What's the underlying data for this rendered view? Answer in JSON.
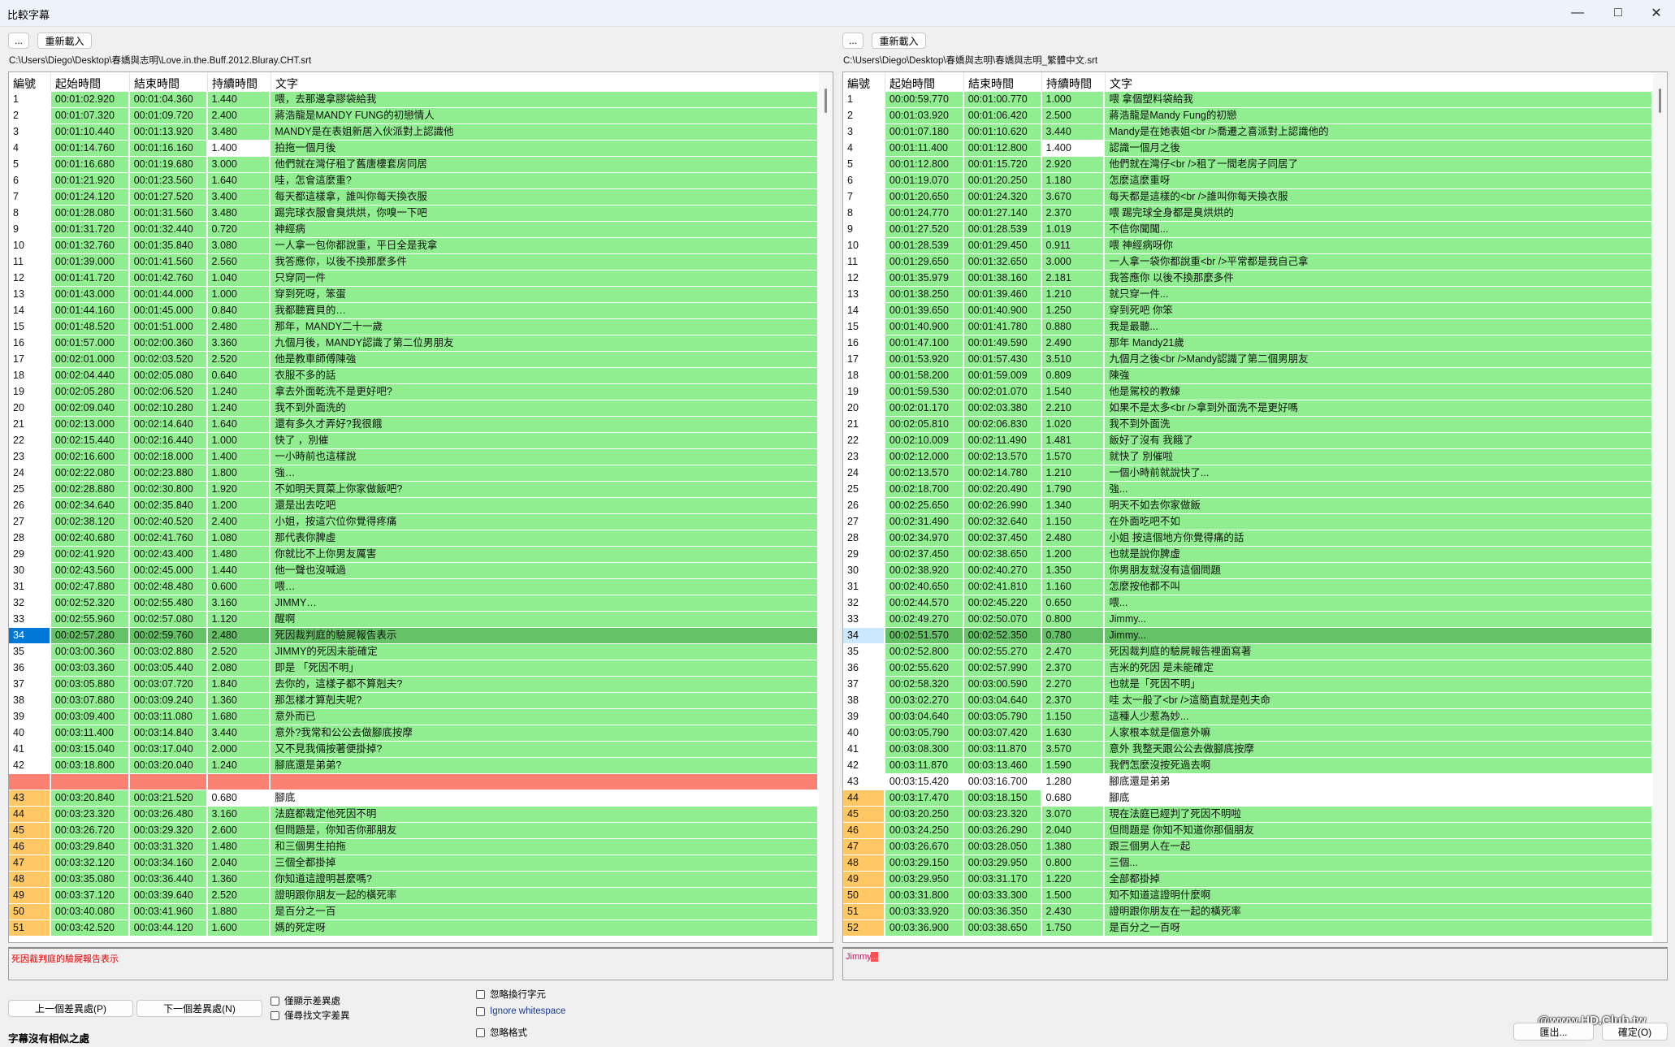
{
  "window": {
    "title": "比較字幕",
    "minimize_icon": "minimize-icon",
    "maximize_icon": "maximize-icon",
    "close_icon": "close-icon"
  },
  "columns": [
    "編號",
    "起始時間",
    "結束時間",
    "持續時間",
    "文字"
  ],
  "colors": {
    "match": "#90ee90",
    "changed": "#ffffff",
    "shifted": "#ffc864",
    "missing": "#fa8072",
    "selected": "#66c266",
    "selected_num": "#0078d7"
  },
  "left": {
    "browse_label": "...",
    "reload_label": "重新載入",
    "path": "C:\\Users\\Diego\\Desktop\\春嬌與志明\\Love.in.the.Buff.2012.Bluray.CHT.srt",
    "diff_text": "死因裁判庭的驗屍報告表示",
    "rows": [
      [
        "1",
        "00:01:02.920",
        "00:01:04.360",
        "1.440",
        "喂，去那邊拿膠袋給我",
        ""
      ],
      [
        "2",
        "00:01:07.320",
        "00:01:09.720",
        "2.400",
        "蔣浩龍是MANDY FUNG的初戀情人",
        ""
      ],
      [
        "3",
        "00:01:10.440",
        "00:01:13.920",
        "3.480",
        "MANDY是在表姐新居入伙派對上認識他",
        ""
      ],
      [
        "4",
        "00:01:14.760",
        "00:01:16.160",
        "1.400",
        "拍拖一個月後",
        "dur"
      ],
      [
        "5",
        "00:01:16.680",
        "00:01:19.680",
        "3.000",
        "他們就在灣仔租了舊唐樓套房同居",
        ""
      ],
      [
        "6",
        "00:01:21.920",
        "00:01:23.560",
        "1.640",
        "哇，怎會這麼重?",
        ""
      ],
      [
        "7",
        "00:01:24.120",
        "00:01:27.520",
        "3.400",
        "每天都這樣拿，誰叫你每天換衣服",
        ""
      ],
      [
        "8",
        "00:01:28.080",
        "00:01:31.560",
        "3.480",
        "踢完球衣服會臭烘烘，你嗅一下吧",
        ""
      ],
      [
        "9",
        "00:01:31.720",
        "00:01:32.440",
        "0.720",
        "神經病",
        ""
      ],
      [
        "10",
        "00:01:32.760",
        "00:01:35.840",
        "3.080",
        "一人拿一包你都說重，平日全是我拿",
        ""
      ],
      [
        "11",
        "00:01:39.000",
        "00:01:41.560",
        "2.560",
        "我答應你，以後不換那麼多件",
        ""
      ],
      [
        "12",
        "00:01:41.720",
        "00:01:42.760",
        "1.040",
        "只穿同一件",
        ""
      ],
      [
        "13",
        "00:01:43.000",
        "00:01:44.000",
        "1.000",
        "穿到死呀，笨蛋",
        ""
      ],
      [
        "14",
        "00:01:44.160",
        "00:01:45.000",
        "0.840",
        "我都聽寶貝的…",
        ""
      ],
      [
        "15",
        "00:01:48.520",
        "00:01:51.000",
        "2.480",
        "那年，MANDY二十一歲",
        ""
      ],
      [
        "16",
        "00:01:57.000",
        "00:02:00.360",
        "3.360",
        "九個月後，MANDY認識了第二位男朋友",
        ""
      ],
      [
        "17",
        "00:02:01.000",
        "00:02:03.520",
        "2.520",
        "他是教車師傅陳強",
        ""
      ],
      [
        "18",
        "00:02:04.440",
        "00:02:05.080",
        "0.640",
        "衣服不多的話",
        ""
      ],
      [
        "19",
        "00:02:05.280",
        "00:02:06.520",
        "1.240",
        "拿去外面乾洗不是更好吧?",
        ""
      ],
      [
        "20",
        "00:02:09.040",
        "00:02:10.280",
        "1.240",
        "我不到外面洗的",
        ""
      ],
      [
        "21",
        "00:02:13.000",
        "00:02:14.640",
        "1.640",
        "還有多久才弄好?我很餓",
        ""
      ],
      [
        "22",
        "00:02:15.440",
        "00:02:16.440",
        "1.000",
        "快了 ，別催",
        ""
      ],
      [
        "23",
        "00:02:16.600",
        "00:02:18.000",
        "1.400",
        "一小時前也這樣說",
        ""
      ],
      [
        "24",
        "00:02:22.080",
        "00:02:23.880",
        "1.800",
        "強…",
        ""
      ],
      [
        "25",
        "00:02:28.880",
        "00:02:30.800",
        "1.920",
        "不如明天買菜上你家做飯吧?",
        ""
      ],
      [
        "26",
        "00:02:34.640",
        "00:02:35.840",
        "1.200",
        "還是出去吃吧",
        ""
      ],
      [
        "27",
        "00:02:38.120",
        "00:02:40.520",
        "2.400",
        "小姐，按這穴位你覺得疼痛",
        ""
      ],
      [
        "28",
        "00:02:40.680",
        "00:02:41.760",
        "1.080",
        "那代表你脾虛",
        ""
      ],
      [
        "29",
        "00:02:41.920",
        "00:02:43.400",
        "1.480",
        "你就比不上你男友厲害",
        ""
      ],
      [
        "30",
        "00:02:43.560",
        "00:02:45.000",
        "1.440",
        "他一聲也沒喊過",
        ""
      ],
      [
        "31",
        "00:02:47.880",
        "00:02:48.480",
        "0.600",
        "喂…",
        ""
      ],
      [
        "32",
        "00:02:52.320",
        "00:02:55.480",
        "3.160",
        "JIMMY…",
        ""
      ],
      [
        "33",
        "00:02:55.960",
        "00:02:57.080",
        "1.120",
        "醒啊",
        ""
      ],
      [
        "34",
        "00:02:57.280",
        "00:02:59.760",
        "2.480",
        "死因裁判庭的驗屍報告表示",
        "sel"
      ],
      [
        "35",
        "00:03:00.360",
        "00:03:02.880",
        "2.520",
        "JIMMY的死因未能確定",
        ""
      ],
      [
        "36",
        "00:03:03.360",
        "00:03:05.440",
        "2.080",
        "即是 「死因不明」",
        ""
      ],
      [
        "37",
        "00:03:05.880",
        "00:03:07.720",
        "1.840",
        "去你的，這樣子都不算剋夫?",
        ""
      ],
      [
        "38",
        "00:03:07.880",
        "00:03:09.240",
        "1.360",
        "那怎樣才算剋夫呢?",
        ""
      ],
      [
        "39",
        "00:03:09.400",
        "00:03:11.080",
        "1.680",
        "意外而已",
        ""
      ],
      [
        "40",
        "00:03:11.400",
        "00:03:14.840",
        "3.440",
        "意外?我常和公公去做腳底按摩",
        ""
      ],
      [
        "41",
        "00:03:15.040",
        "00:03:17.040",
        "2.000",
        "又不見我倆按著便掛掉?",
        ""
      ],
      [
        "42",
        "00:03:18.800",
        "00:03:20.040",
        "1.240",
        "腳底還是弟弟?",
        ""
      ],
      [
        "",
        "",
        "",
        "",
        "",
        "gap"
      ],
      [
        "43",
        "00:03:20.840",
        "00:03:21.520",
        "0.680",
        "腳底",
        "shift-dur"
      ],
      [
        "44",
        "00:03:23.320",
        "00:03:26.480",
        "3.160",
        "法庭都裁定他死因不明",
        "shift"
      ],
      [
        "45",
        "00:03:26.720",
        "00:03:29.320",
        "2.600",
        "但問題是，你知否你那朋友",
        "shift"
      ],
      [
        "46",
        "00:03:29.840",
        "00:03:31.320",
        "1.480",
        "和三個男生拍拖",
        "shift"
      ],
      [
        "47",
        "00:03:32.120",
        "00:03:34.160",
        "2.040",
        "三個全都掛掉",
        "shift"
      ],
      [
        "48",
        "00:03:35.080",
        "00:03:36.440",
        "1.360",
        "你知道這證明甚麼嗎?",
        "shift"
      ],
      [
        "49",
        "00:03:37.120",
        "00:03:39.640",
        "2.520",
        "證明跟你朋友一起的橫死率",
        "shift"
      ],
      [
        "50",
        "00:03:40.080",
        "00:03:41.960",
        "1.880",
        "是百分之一百",
        "shift"
      ],
      [
        "51",
        "00:03:42.520",
        "00:03:44.120",
        "1.600",
        "媽的死定呀",
        "shift"
      ]
    ]
  },
  "right": {
    "browse_label": "...",
    "reload_label": "重新載入",
    "path": "C:\\Users\\Diego\\Desktop\\春嬌與志明\\春嬌與志明_繁體中文.srt",
    "diff_text": "Jimmy",
    "diff_text_highlight": "...",
    "rows": [
      [
        "1",
        "00:00:59.770",
        "00:01:00.770",
        "1.000",
        "喂 拿個塑料袋給我",
        ""
      ],
      [
        "2",
        "00:01:03.920",
        "00:01:06.420",
        "2.500",
        "蔣浩龍是Mandy Fung的初戀",
        ""
      ],
      [
        "3",
        "00:01:07.180",
        "00:01:10.620",
        "3.440",
        "Mandy是在她表姐<br />喬遷之喜派對上認識他的",
        ""
      ],
      [
        "4",
        "00:01:11.400",
        "00:01:12.800",
        "1.400",
        "認識一個月之後",
        "dur"
      ],
      [
        "5",
        "00:01:12.800",
        "00:01:15.720",
        "2.920",
        "他們就在灣仔<br />租了一間老房子同居了",
        ""
      ],
      [
        "6",
        "00:01:19.070",
        "00:01:20.250",
        "1.180",
        "怎麼這麼重呀",
        ""
      ],
      [
        "7",
        "00:01:20.650",
        "00:01:24.320",
        "3.670",
        "每天都是這樣的<br />誰叫你每天換衣服",
        ""
      ],
      [
        "8",
        "00:01:24.770",
        "00:01:27.140",
        "2.370",
        "喂 踢完球全身都是臭烘烘的",
        ""
      ],
      [
        "9",
        "00:01:27.520",
        "00:01:28.539",
        "1.019",
        "不信你聞聞...",
        ""
      ],
      [
        "10",
        "00:01:28.539",
        "00:01:29.450",
        "0.911",
        "喂 神經病呀你",
        ""
      ],
      [
        "11",
        "00:01:29.650",
        "00:01:32.650",
        "3.000",
        "一人拿一袋你都說重<br />平常都是我自己拿",
        ""
      ],
      [
        "12",
        "00:01:35.979",
        "00:01:38.160",
        "2.181",
        "我答應你 以後不換那麼多件",
        ""
      ],
      [
        "13",
        "00:01:38.250",
        "00:01:39.460",
        "1.210",
        "就只穿一件...",
        ""
      ],
      [
        "14",
        "00:01:39.650",
        "00:01:40.900",
        "1.250",
        "穿到死吧 你笨",
        ""
      ],
      [
        "15",
        "00:01:40.900",
        "00:01:41.780",
        "0.880",
        "我是最聽...",
        ""
      ],
      [
        "16",
        "00:01:47.100",
        "00:01:49.590",
        "2.490",
        "那年 Mandy21歲",
        ""
      ],
      [
        "17",
        "00:01:53.920",
        "00:01:57.430",
        "3.510",
        "九個月之後<br />Mandy認識了第二個男朋友",
        ""
      ],
      [
        "18",
        "00:01:58.200",
        "00:01:59.009",
        "0.809",
        "陳強",
        ""
      ],
      [
        "19",
        "00:01:59.530",
        "00:02:01.070",
        "1.540",
        "他是駕校的教練",
        ""
      ],
      [
        "20",
        "00:02:01.170",
        "00:02:03.380",
        "2.210",
        "如果不是太多<br />拿到外面洗不是更好嗎",
        ""
      ],
      [
        "21",
        "00:02:05.810",
        "00:02:06.830",
        "1.020",
        "我不到外面洗",
        ""
      ],
      [
        "22",
        "00:02:10.009",
        "00:02:11.490",
        "1.481",
        "飯好了沒有 我餓了",
        ""
      ],
      [
        "23",
        "00:02:12.000",
        "00:02:13.570",
        "1.570",
        "就快了 別催啦",
        ""
      ],
      [
        "24",
        "00:02:13.570",
        "00:02:14.780",
        "1.210",
        "一個小時前就說快了...",
        ""
      ],
      [
        "25",
        "00:02:18.700",
        "00:02:20.490",
        "1.790",
        "強...",
        ""
      ],
      [
        "26",
        "00:02:25.650",
        "00:02:26.990",
        "1.340",
        "明天不如去你家做飯",
        ""
      ],
      [
        "27",
        "00:02:31.490",
        "00:02:32.640",
        "1.150",
        "在外面吃吧不如",
        ""
      ],
      [
        "28",
        "00:02:34.970",
        "00:02:37.450",
        "2.480",
        "小姐 按這個地方你覺得痛的話",
        ""
      ],
      [
        "29",
        "00:02:37.450",
        "00:02:38.650",
        "1.200",
        "也就是說你脾虛",
        ""
      ],
      [
        "30",
        "00:02:38.920",
        "00:02:40.270",
        "1.350",
        "你男朋友就沒有這個問題",
        ""
      ],
      [
        "31",
        "00:02:40.650",
        "00:02:41.810",
        "1.160",
        "怎麼按他都不叫",
        ""
      ],
      [
        "32",
        "00:02:44.570",
        "00:02:45.220",
        "0.650",
        "喂...",
        ""
      ],
      [
        "33",
        "00:02:49.270",
        "00:02:50.070",
        "0.800",
        "Jimmy...",
        ""
      ],
      [
        "34",
        "00:02:51.570",
        "00:02:52.350",
        "0.780",
        "Jimmy...",
        "sel2"
      ],
      [
        "35",
        "00:02:52.800",
        "00:02:55.270",
        "2.470",
        "死因裁判庭的驗屍報告裡面寫著",
        ""
      ],
      [
        "36",
        "00:02:55.620",
        "00:02:57.990",
        "2.370",
        "吉米的死因 是未能確定",
        ""
      ],
      [
        "37",
        "00:02:58.320",
        "00:03:00.590",
        "2.270",
        "也就是「死因不明」",
        ""
      ],
      [
        "38",
        "00:03:02.270",
        "00:03:04.640",
        "2.370",
        "哇 太一般了<br />這簡直就是剋夫命",
        ""
      ],
      [
        "39",
        "00:03:04.640",
        "00:03:05.790",
        "1.150",
        "這種人少惹為妙...",
        ""
      ],
      [
        "40",
        "00:03:05.790",
        "00:03:07.420",
        "1.630",
        "人家根本就是個意外嘛",
        ""
      ],
      [
        "41",
        "00:03:08.300",
        "00:03:11.870",
        "3.570",
        "意外 我整天跟公公去做腳底按摩",
        ""
      ],
      [
        "42",
        "00:03:11.870",
        "00:03:13.460",
        "1.590",
        "我們怎麼沒按死過去啊",
        ""
      ],
      [
        "43",
        "00:03:15.420",
        "00:03:16.700",
        "1.280",
        "腳底還是弟弟",
        "white"
      ],
      [
        "44",
        "00:03:17.470",
        "00:03:18.150",
        "0.680",
        "腳底",
        "shift-dur"
      ],
      [
        "45",
        "00:03:20.250",
        "00:03:23.320",
        "3.070",
        "現在法庭已經判了死因不明啦",
        "shift"
      ],
      [
        "46",
        "00:03:24.250",
        "00:03:26.290",
        "2.040",
        "但問題是 你知不知道你那個朋友",
        "shift"
      ],
      [
        "47",
        "00:03:26.670",
        "00:03:28.050",
        "1.380",
        "跟三個男人在一起",
        "shift"
      ],
      [
        "48",
        "00:03:29.150",
        "00:03:29.950",
        "0.800",
        "三個...",
        "shift"
      ],
      [
        "49",
        "00:03:29.950",
        "00:03:31.170",
        "1.220",
        "全部都掛掉",
        "shift"
      ],
      [
        "50",
        "00:03:31.800",
        "00:03:33.300",
        "1.500",
        "知不知道這證明什麼啊",
        "shift"
      ],
      [
        "51",
        "00:03:33.920",
        "00:03:36.350",
        "2.430",
        "證明跟你朋友在一起的橫死率",
        "shift"
      ],
      [
        "52",
        "00:03:36.900",
        "00:03:38.650",
        "1.750",
        "是百分之一百呀",
        "shift"
      ]
    ]
  },
  "controls": {
    "prev_label": "上一個差異處(P)",
    "next_label": "下一個差異處(N)",
    "show_only_diff": "僅顯示差異處",
    "find_text_diff_only": "僅尋找文字差異",
    "ignore_linebreak": "忽略換行字元",
    "ignore_whitespace": "Ignore whitespace",
    "ignore_format": "忽略格式",
    "status": "字幕沒有相似之處",
    "export_label": "匯出...",
    "ok_label": "確定(O)"
  },
  "watermark": "@www.HD.Club.tw"
}
